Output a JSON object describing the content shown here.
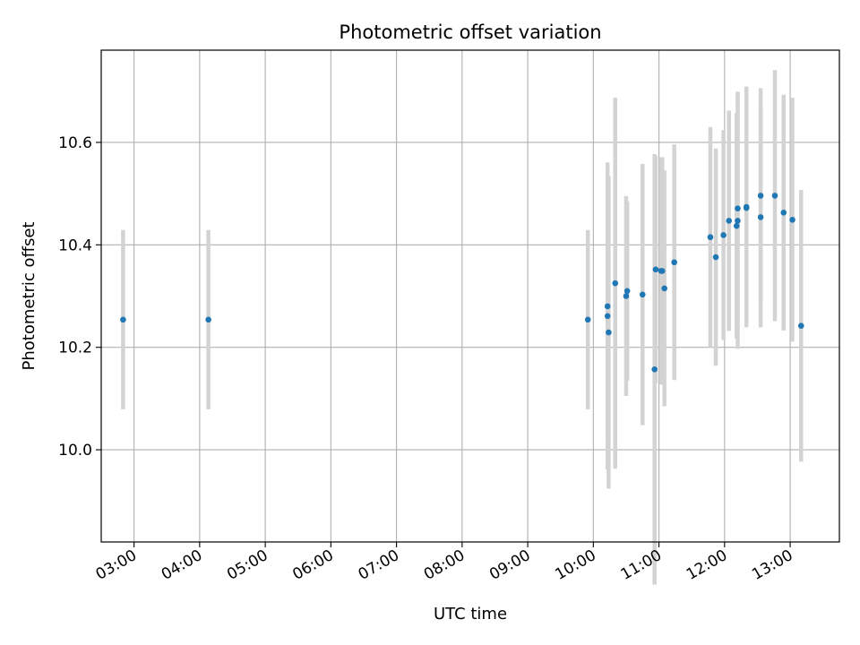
{
  "chart_data": {
    "type": "scatter",
    "title": "Photometric offset variation",
    "xlabel": "UTC time",
    "ylabel": "Photometric offset",
    "x_ticks": [
      "03:00",
      "04:00",
      "05:00",
      "06:00",
      "07:00",
      "08:00",
      "09:00",
      "10:00",
      "11:00",
      "12:00",
      "13:00"
    ],
    "y_ticks": [
      "10.0",
      "10.2",
      "10.4",
      "10.6"
    ],
    "xlim": [
      "02:30",
      "13:45"
    ],
    "ylim": [
      9.82,
      10.78
    ],
    "grid": true,
    "colors": {
      "point": "#1f77b4",
      "errorbar": "#d3d3d3",
      "grid": "#b0b0b0"
    },
    "points": [
      {
        "x": "02:50",
        "y": 10.254,
        "err": 0.175
      },
      {
        "x": "04:08",
        "y": 10.254,
        "err": 0.175
      },
      {
        "x": "09:55",
        "y": 10.254,
        "err": 0.175
      },
      {
        "x": "10:13",
        "y": 10.28,
        "err": 0.255
      },
      {
        "x": "10:13",
        "y": 10.261,
        "err": 0.3
      },
      {
        "x": "10:14",
        "y": 10.229,
        "err": 0.305
      },
      {
        "x": "10:20",
        "y": 10.325,
        "err": 0.362
      },
      {
        "x": "10:30",
        "y": 10.3,
        "err": 0.195
      },
      {
        "x": "10:31",
        "y": 10.31,
        "err": 0.175
      },
      {
        "x": "10:45",
        "y": 10.303,
        "err": 0.255
      },
      {
        "x": "10:56",
        "y": 10.157,
        "err": 0.42
      },
      {
        "x": "10:57",
        "y": 10.352,
        "err": 0.222
      },
      {
        "x": "11:02",
        "y": 10.349,
        "err": 0.222
      },
      {
        "x": "11:03",
        "y": 10.349,
        "err": 0.222
      },
      {
        "x": "11:05",
        "y": 10.315,
        "err": 0.23
      },
      {
        "x": "11:14",
        "y": 10.366,
        "err": 0.23
      },
      {
        "x": "11:47",
        "y": 10.415,
        "err": 0.215
      },
      {
        "x": "11:52",
        "y": 10.376,
        "err": 0.212
      },
      {
        "x": "11:59",
        "y": 10.419,
        "err": 0.205
      },
      {
        "x": "12:04",
        "y": 10.447,
        "err": 0.215
      },
      {
        "x": "12:11",
        "y": 10.437,
        "err": 0.22
      },
      {
        "x": "12:12",
        "y": 10.447,
        "err": 0.25
      },
      {
        "x": "12:12",
        "y": 10.471,
        "err": 0.228
      },
      {
        "x": "12:20",
        "y": 10.474,
        "err": 0.235
      },
      {
        "x": "12:20",
        "y": 10.472,
        "err": 0.232
      },
      {
        "x": "12:33",
        "y": 10.454,
        "err": 0.215
      },
      {
        "x": "12:33",
        "y": 10.496,
        "err": 0.21
      },
      {
        "x": "12:46",
        "y": 10.496,
        "err": 0.245
      },
      {
        "x": "12:54",
        "y": 10.463,
        "err": 0.23
      },
      {
        "x": "13:02",
        "y": 10.449,
        "err": 0.238
      },
      {
        "x": "13:10",
        "y": 10.242,
        "err": 0.265
      }
    ]
  }
}
